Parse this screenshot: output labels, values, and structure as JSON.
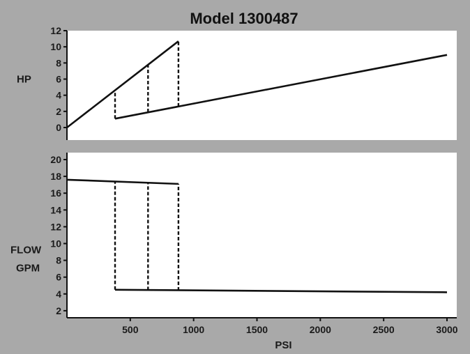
{
  "chart_data": {
    "title": "Model 1300487",
    "x_axis": {
      "label": "PSI",
      "range": [
        0,
        3000
      ],
      "ticks": [
        500,
        1000,
        1500,
        2000,
        2500,
        3000
      ],
      "tick_labels": [
        "500",
        "1000",
        "1500",
        "2000",
        "2500",
        "3000"
      ]
    },
    "panels": [
      {
        "type": "line",
        "ylabel": "HP",
        "ylim": [
          0,
          12
        ],
        "yticks": [
          0,
          2,
          4,
          6,
          8,
          10,
          12
        ],
        "ytick_labels": [
          "0",
          "2",
          "4",
          "6",
          "8",
          "10",
          "12"
        ],
        "series": [
          {
            "style": "solid",
            "x": [
              0,
              880
            ],
            "y": [
              0,
              10.7
            ]
          },
          {
            "style": "solid",
            "x": [
              380,
              3000
            ],
            "y": [
              1.1,
              9.0
            ]
          },
          {
            "style": "dashed",
            "x": [
              380,
              380
            ],
            "y": [
              1.1,
              4.6
            ]
          },
          {
            "style": "dashed",
            "x": [
              640,
              640
            ],
            "y": [
              1.9,
              7.8
            ]
          },
          {
            "style": "dashed",
            "x": [
              880,
              880
            ],
            "y": [
              2.6,
              10.7
            ]
          }
        ]
      },
      {
        "type": "line",
        "ylabel": "FLOW GPM",
        "ylabel_lines": [
          "FLOW",
          "GPM"
        ],
        "ylim": [
          0,
          20
        ],
        "yticks": [
          2,
          4,
          6,
          8,
          10,
          12,
          14,
          16,
          18,
          20
        ],
        "ytick_labels": [
          "2",
          "4",
          "6",
          "8",
          "10",
          "12",
          "14",
          "16",
          "18",
          "20"
        ],
        "series": [
          {
            "style": "solid",
            "x": [
              0,
              880
            ],
            "y": [
              17.6,
              17.1
            ]
          },
          {
            "style": "solid",
            "x": [
              380,
              3000
            ],
            "y": [
              4.5,
              4.2
            ]
          },
          {
            "style": "dashed",
            "x": [
              380,
              380
            ],
            "y": [
              4.5,
              17.4
            ]
          },
          {
            "style": "dashed",
            "x": [
              640,
              640
            ],
            "y": [
              4.45,
              17.25
            ]
          },
          {
            "style": "dashed",
            "x": [
              880,
              880
            ],
            "y": [
              4.4,
              17.1
            ]
          }
        ]
      }
    ]
  },
  "colors": {
    "background": "#a9a9a9",
    "panel": "#ffffff",
    "ink": "#111111"
  }
}
